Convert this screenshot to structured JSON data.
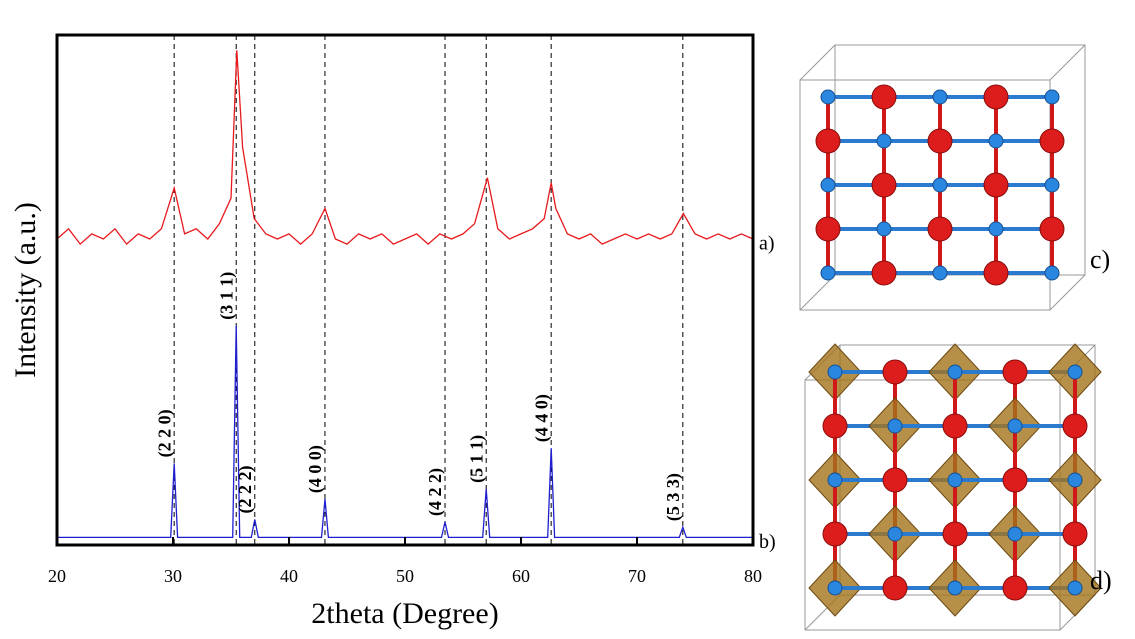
{
  "chart_data": {
    "type": "line",
    "xlabel": "2theta (Degree)",
    "ylabel": "Intensity (a.u.)",
    "xlim": [
      20,
      80
    ],
    "xticks": [
      20,
      30,
      40,
      50,
      60,
      70,
      80
    ],
    "ylim": [
      0,
      100
    ],
    "series": [
      {
        "name": "a)",
        "color": "#e8191c",
        "x": [
          20,
          21,
          22,
          23,
          24,
          25,
          26,
          27,
          28,
          29,
          30.1,
          31,
          32,
          33,
          34,
          35,
          35.5,
          36,
          37,
          38,
          39,
          40,
          41,
          42,
          43.1,
          44,
          45,
          46,
          47,
          48,
          49,
          50,
          51,
          52,
          53,
          54,
          55,
          56,
          57.1,
          58,
          59,
          60,
          61,
          62,
          62.6,
          63,
          64,
          65,
          66,
          67,
          68,
          69,
          70,
          71,
          72,
          73,
          74,
          75,
          76,
          77,
          78,
          79,
          80
        ],
        "values": [
          60,
          62,
          59,
          61,
          60,
          62,
          59,
          61,
          60,
          62,
          70,
          61,
          62,
          60,
          63,
          68,
          97,
          78,
          64,
          61,
          60,
          61,
          59,
          61,
          66,
          60,
          59,
          61,
          60,
          61,
          59,
          60,
          61,
          59,
          61,
          60,
          61,
          63,
          72,
          62,
          60,
          61,
          62,
          64,
          71,
          66,
          61,
          60,
          61,
          59,
          60,
          61,
          60,
          61,
          60,
          61,
          65,
          61,
          60,
          61,
          60,
          61,
          60
        ]
      },
      {
        "name": "b)",
        "color": "#1f1fd0",
        "x": [
          20,
          29.8,
          30.1,
          30.4,
          35.15,
          35.45,
          35.75,
          36.75,
          37.05,
          37.35,
          42.8,
          43.1,
          43.4,
          53.15,
          53.45,
          53.75,
          56.7,
          57.0,
          57.3,
          62.3,
          62.6,
          62.9,
          73.65,
          73.95,
          74.25,
          80
        ],
        "values": [
          1.5,
          1.5,
          16,
          1.5,
          1.5,
          43,
          1.5,
          1.5,
          5,
          1.5,
          1.5,
          9,
          1.5,
          1.5,
          4.5,
          1.5,
          1.5,
          11,
          1.5,
          1.5,
          19,
          1.5,
          1.5,
          3.5,
          1.5,
          1.5
        ]
      }
    ],
    "reflections": [
      {
        "label": "(2 2 0)",
        "x": 30.1,
        "y": 16
      },
      {
        "label": "(3 1 1)",
        "x": 35.45,
        "y": 43
      },
      {
        "label": "(2 2 2)",
        "x": 37.05,
        "y": 5
      },
      {
        "label": "(4 0 0)",
        "x": 43.1,
        "y": 9
      },
      {
        "label": "(4 2 2)",
        "x": 53.45,
        "y": 4.5
      },
      {
        "label": "(5 1 1)",
        "x": 57.0,
        "y": 11
      },
      {
        "label": "(4 4 0)",
        "x": 62.6,
        "y": 19
      },
      {
        "label": "(5 3 3)",
        "x": 73.95,
        "y": 3.5
      }
    ],
    "panels": [
      "c)",
      "d)"
    ]
  }
}
